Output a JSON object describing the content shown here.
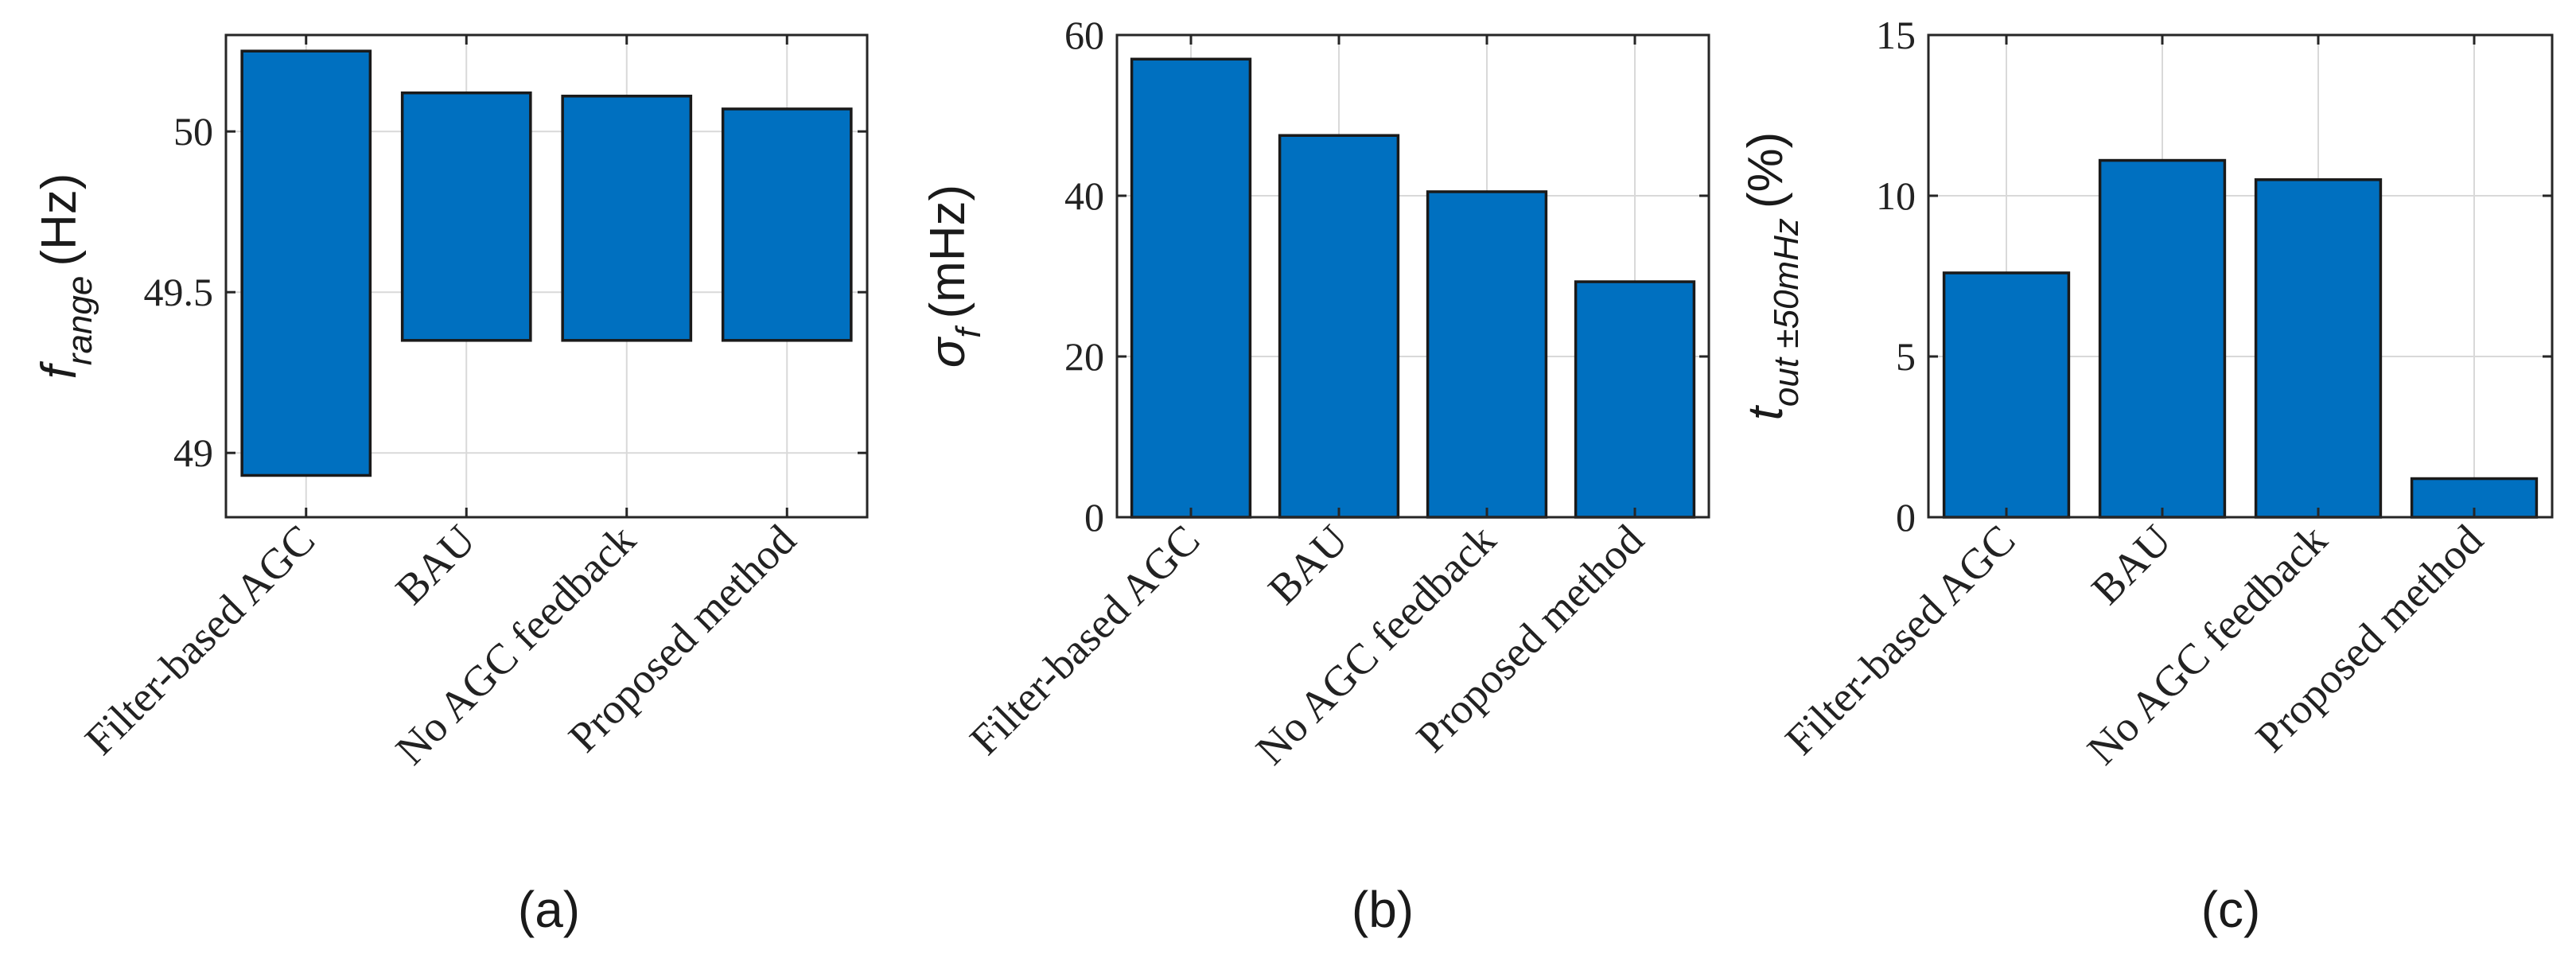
{
  "bar_color": "#0070c0",
  "bar_edge_color": "#1a1a1a",
  "grid_color": "#d9d9d9",
  "axis_color": "#262626",
  "chart_data": [
    {
      "id": "a",
      "type": "bar",
      "style": "floating-range",
      "caption": "(a)",
      "ylabel_parts": {
        "symbol": "f",
        "subscript": "range",
        "unit": "(Hz)"
      },
      "categories": [
        "Filter-based AGC",
        "BAU",
        "No AGC feedback",
        "Proposed method"
      ],
      "ranges": [
        [
          48.93,
          50.25
        ],
        [
          49.35,
          50.12
        ],
        [
          49.35,
          50.11
        ],
        [
          49.35,
          50.07
        ]
      ],
      "ylim": [
        48.8,
        50.3
      ],
      "yticks": [
        49,
        49.5,
        50
      ],
      "ytick_labels": [
        "49",
        "49.5",
        "50"
      ],
      "grid": true
    },
    {
      "id": "b",
      "type": "bar",
      "caption": "(b)",
      "ylabel_parts": {
        "symbol": "σ",
        "subscript": "f",
        "unit": "(mHz)"
      },
      "categories": [
        "Filter-based AGC",
        "BAU",
        "No AGC feedback",
        "Proposed method"
      ],
      "values": [
        57,
        47.5,
        40.5,
        29.3
      ],
      "ylim": [
        0,
        60
      ],
      "yticks": [
        0,
        20,
        40,
        60
      ],
      "ytick_labels": [
        "0",
        "20",
        "40",
        "60"
      ],
      "grid": true
    },
    {
      "id": "c",
      "type": "bar",
      "caption": "(c)",
      "ylabel_parts": {
        "symbol": "t",
        "subscript": "out ±50mHz",
        "unit": "(%)"
      },
      "categories": [
        "Filter-based AGC",
        "BAU",
        "No AGC feedback",
        "Proposed method"
      ],
      "values": [
        7.6,
        11.1,
        10.5,
        1.2
      ],
      "ylim": [
        0,
        15
      ],
      "yticks": [
        0,
        5,
        10,
        15
      ],
      "ytick_labels": [
        "0",
        "5",
        "10",
        "15"
      ],
      "grid": true
    }
  ]
}
